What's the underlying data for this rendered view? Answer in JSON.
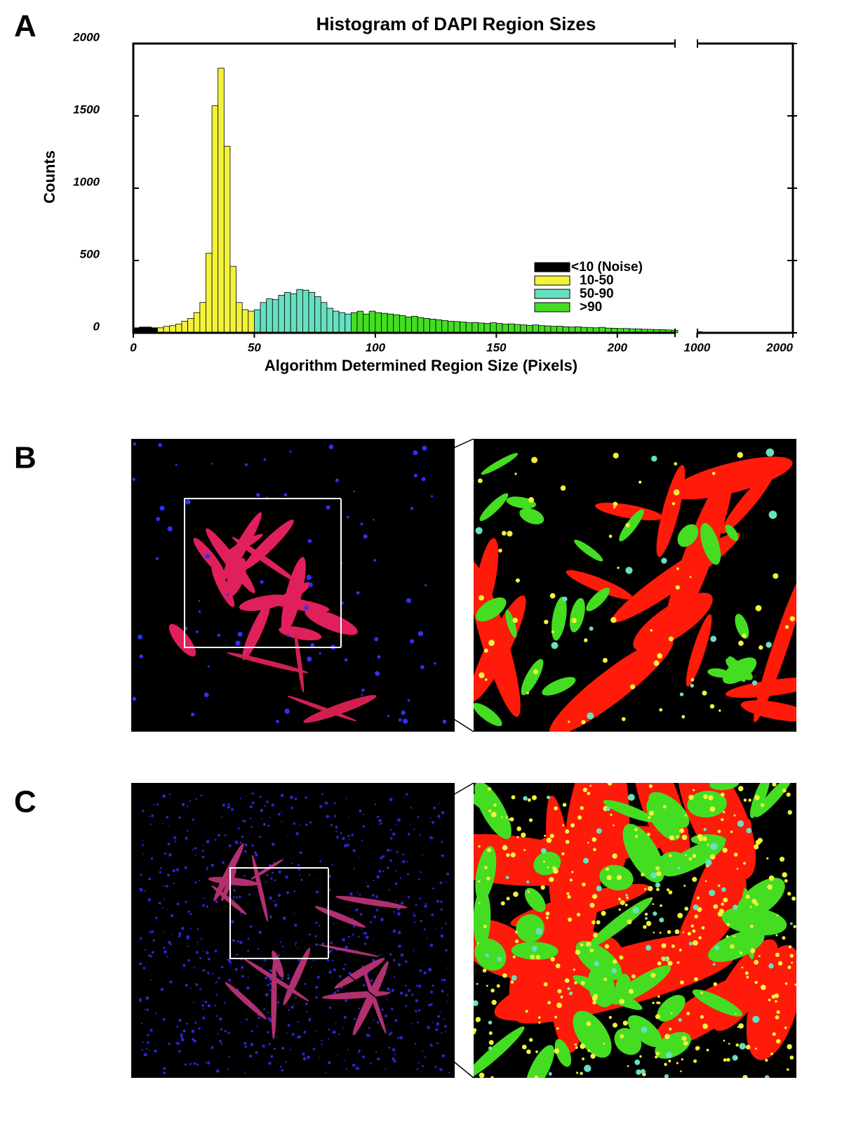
{
  "panels": [
    "A",
    "B",
    "C"
  ],
  "chart_data": {
    "type": "histogram",
    "title": "Histogram of DAPI Region Sizes",
    "x_label": "Algorithm Determined Region Size (Pixels)",
    "y_label": "Counts",
    "xlim": [
      0,
      2000
    ],
    "x_break": [
      225,
      975
    ],
    "xticks": [
      0,
      50,
      100,
      150,
      200,
      1000,
      2000
    ],
    "ylim": [
      0,
      2000
    ],
    "yticks": [
      0,
      500,
      1000,
      1500,
      2000
    ],
    "legend": "center-right",
    "series": [
      {
        "name": "<10 (Noise)",
        "color": "#000000",
        "bins": [
          0,
          2.5,
          5,
          7.5,
          10
        ],
        "counts": [
          35,
          40,
          40,
          35
        ]
      },
      {
        "name": "10-50",
        "color": "#f2f23a",
        "bins": [
          10,
          12.5,
          15,
          17.5,
          20,
          22.5,
          25,
          27.5,
          30,
          32.5,
          35,
          37.5,
          40,
          42.5,
          45,
          47.5,
          50
        ],
        "counts": [
          35,
          45,
          50,
          60,
          80,
          100,
          140,
          210,
          550,
          1570,
          1830,
          1290,
          460,
          210,
          160,
          150
        ]
      },
      {
        "name": "50-90",
        "color": "#66e0c0",
        "bins": [
          50,
          52.5,
          55,
          57.5,
          60,
          62.5,
          65,
          67.5,
          70,
          72.5,
          75,
          77.5,
          80,
          82.5,
          85,
          87.5,
          90
        ],
        "counts": [
          160,
          210,
          235,
          230,
          260,
          280,
          270,
          300,
          295,
          280,
          250,
          210,
          170,
          150,
          140,
          130
        ]
      },
      {
        "name": ">90",
        "color": "#44dd22",
        "bins": [
          90,
          92.5,
          95,
          97.5,
          100,
          102.5,
          105,
          107.5,
          110,
          112.5,
          115,
          117.5,
          120,
          122.5,
          125,
          127.5,
          130,
          132.5,
          135,
          137.5,
          140,
          142.5,
          145,
          147.5,
          150,
          152.5,
          155,
          157.5,
          160,
          162.5,
          165,
          167.5,
          170,
          172.5,
          175,
          177.5,
          180,
          182.5,
          185,
          187.5,
          190,
          192.5,
          195,
          197.5,
          200,
          202.5,
          205,
          207.5,
          210,
          212.5,
          215,
          217.5,
          220,
          222.5,
          225,
          1000,
          1050
        ],
        "counts": [
          140,
          150,
          130,
          150,
          140,
          135,
          130,
          125,
          120,
          110,
          115,
          105,
          100,
          95,
          90,
          85,
          80,
          78,
          75,
          70,
          72,
          68,
          65,
          70,
          65,
          60,
          62,
          58,
          55,
          52,
          55,
          50,
          48,
          45,
          46,
          42,
          40,
          42,
          38,
          36,
          35,
          38,
          33,
          32,
          30,
          30,
          28,
          27,
          25,
          24,
          22,
          22,
          20,
          18,
          null,
          8
        ]
      }
    ]
  }
}
